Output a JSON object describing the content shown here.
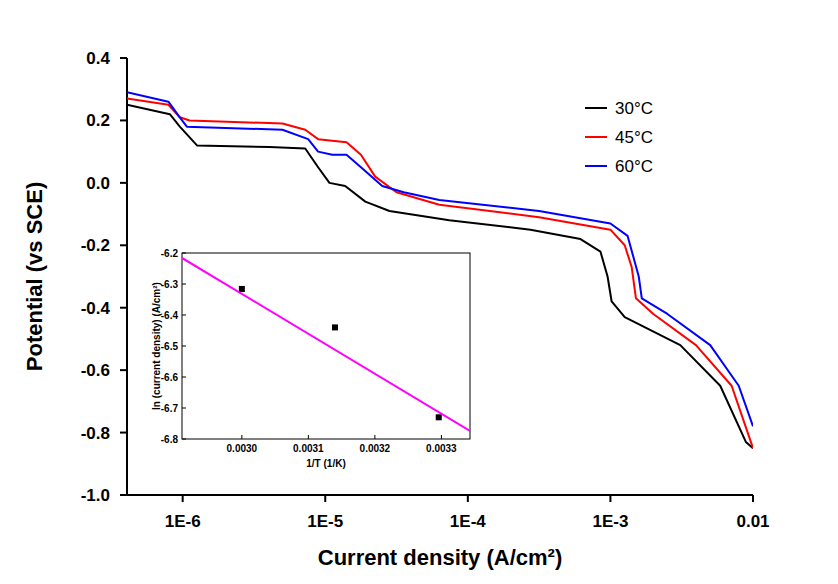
{
  "chart_data": [
    {
      "type": "line",
      "log": "x",
      "x_label": "Current density (A/cm²)",
      "y_label": "Potential (vs SCE)",
      "xlim": [
        4.07e-07,
        0.01
      ],
      "ylim": [
        -1.0,
        0.4
      ],
      "xticks": [
        {
          "value": 1e-06,
          "label": "1E-6"
        },
        {
          "value": 1e-05,
          "label": "1E-5"
        },
        {
          "value": 0.0001,
          "label": "1E-4"
        },
        {
          "value": 0.001,
          "label": "1E-3"
        },
        0.01
      ],
      "yticks": [
        {
          "value": -1,
          "label": "-1.0"
        },
        -0.8,
        -0.6,
        -0.4,
        -0.2,
        {
          "value": 0,
          "label": "0.0"
        },
        0.2,
        0.4
      ],
      "grid": false,
      "legend": "top-right",
      "series": [
        {
          "name": "30°C",
          "color": "#000000",
          "line_style": "solid",
          "x": [
            4.07e-07,
            8.13e-07,
            9.55e-07,
            1.26e-06,
            4.07e-06,
            7.24e-06,
            8.91e-06,
            1.07e-05,
            1.38e-05,
            1.91e-05,
            2.82e-05,
            7.41e-05,
            0.000275,
            0.000617,
            0.000851,
            0.000955,
            0.00102,
            0.00126,
            0.00309,
            0.00589,
            0.00891,
            0.01
          ],
          "values": [
            0.25,
            0.22,
            0.18,
            0.12,
            0.115,
            0.11,
            0.05,
            0.0,
            -0.01,
            -0.06,
            -0.09,
            -0.12,
            -0.15,
            -0.18,
            -0.22,
            -0.3,
            -0.38,
            -0.43,
            -0.52,
            -0.65,
            -0.83,
            -0.85
          ]
        },
        {
          "name": "45°C",
          "color": "#ff0000",
          "line_style": "solid",
          "x": [
            4.07e-07,
            7.94e-07,
            9.55e-07,
            1.12e-06,
            5.01e-06,
            7.24e-06,
            8.91e-06,
            1.41e-05,
            1.78e-05,
            2.24e-05,
            3.16e-05,
            6.31e-05,
            0.000316,
            0.001,
            0.00126,
            0.00141,
            0.00151,
            0.002,
            0.00398,
            0.00708,
            0.01
          ],
          "values": [
            0.27,
            0.25,
            0.21,
            0.2,
            0.19,
            0.17,
            0.14,
            0.13,
            0.09,
            0.02,
            -0.03,
            -0.07,
            -0.11,
            -0.15,
            -0.2,
            -0.27,
            -0.37,
            -0.42,
            -0.52,
            -0.65,
            -0.85
          ]
        },
        {
          "name": "60°C",
          "color": "#0000ff",
          "line_style": "solid",
          "x": [
            4.07e-07,
            7.94e-07,
            9.55e-07,
            1.07e-06,
            5.01e-06,
            7.59e-06,
            8.91e-06,
            1.12e-05,
            1.41e-05,
            1.78e-05,
            2.51e-05,
            3.55e-05,
            6.31e-05,
            0.000316,
            0.001,
            0.00132,
            0.00158,
            0.00166,
            0.00251,
            0.00501,
            0.00794,
            0.01
          ],
          "values": [
            0.29,
            0.26,
            0.21,
            0.18,
            0.17,
            0.14,
            0.1,
            0.09,
            0.09,
            0.05,
            -0.01,
            -0.03,
            -0.055,
            -0.09,
            -0.13,
            -0.17,
            -0.3,
            -0.37,
            -0.42,
            -0.52,
            -0.65,
            -0.78
          ]
        }
      ]
    },
    {
      "type": "scatter",
      "x_label": "1/T (1/K)",
      "y_label": "ln (current density) (A/cm²)",
      "xlim": [
        0.00291,
        0.003343
      ],
      "ylim": [
        -6.8,
        -6.2
      ],
      "xticks": [
        {
          "value": 0.003,
          "label": "0.0030"
        },
        {
          "value": 0.0031,
          "label": "0.0031"
        },
        {
          "value": 0.0032,
          "label": "0.0032"
        },
        {
          "value": 0.0033,
          "label": "0.0033"
        }
      ],
      "yticks": [
        -6.8,
        -6.7,
        -6.6,
        -6.5,
        -6.4,
        -6.3,
        -6.2
      ],
      "grid": false,
      "series": [
        {
          "type": "scatter",
          "color": "#000000",
          "marker": "square",
          "x": [
            0.003,
            0.00314,
            0.003296
          ],
          "values": [
            -6.316,
            -6.44,
            -6.73
          ]
        },
        {
          "type": "line",
          "color": "#ff00ff",
          "line_style": "solid",
          "x": [
            0.00291,
            0.003343
          ],
          "values": [
            -6.216,
            -6.774
          ]
        }
      ]
    }
  ]
}
